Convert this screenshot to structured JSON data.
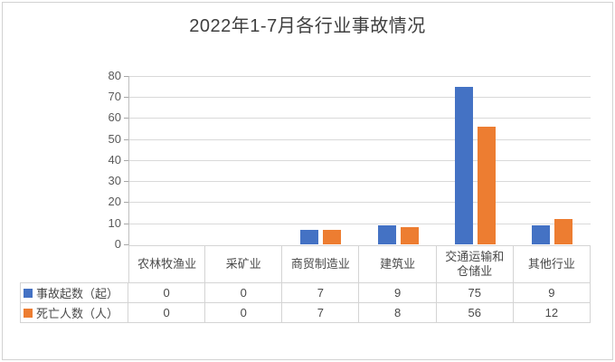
{
  "chart_data": {
    "type": "bar",
    "title": "2022年1-7月各行业事故情况",
    "categories": [
      "农林牧渔业",
      "采矿业",
      "商贸制造业",
      "建筑业",
      "交通运输和仓储业",
      "其他行业"
    ],
    "category_display": [
      "农林牧渔业",
      "采矿业",
      "商贸制造业",
      "建筑业",
      "交通运输和\n仓储业",
      "其他行业"
    ],
    "series": [
      {
        "name": "事故起数（起）",
        "color": "#4472C4",
        "values": [
          0,
          0,
          7,
          9,
          75,
          9
        ]
      },
      {
        "name": "死亡人数（人）",
        "color": "#ED7D31",
        "values": [
          0,
          0,
          7,
          8,
          56,
          12
        ]
      }
    ],
    "xlabel": "",
    "ylabel": "",
    "ylim": [
      0,
      80
    ],
    "yticks": [
      0,
      10,
      20,
      30,
      40,
      50,
      60,
      70,
      80
    ],
    "grid": true,
    "legend_position": "data-table-left",
    "colors": {
      "gridline": "#d9d9d9",
      "axis": "#bfbfbf",
      "table_border": "#d4d4d4",
      "table_text": "#4a4a4a",
      "axis_text": "#595959",
      "title_text": "#3f3f3f",
      "background": "#ffffff"
    }
  }
}
